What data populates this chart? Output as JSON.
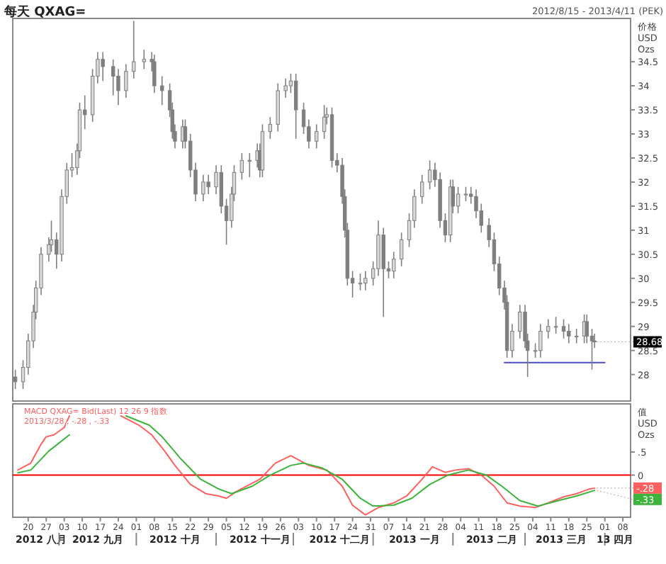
{
  "chart_data": [
    {
      "type": "candlestick",
      "title": "每天 QXAG=",
      "subtitle": "2012/8/15 - 2013/4/11 (PEK)",
      "ylabel": "价格\nUSD\nOzs",
      "color": "#7f7f7f",
      "tick_labels": "y",
      "xlim": [
        "2012-08-14",
        "2013-04-11"
      ],
      "ylim": [
        27.45,
        35.4
      ],
      "yticks": [
        28,
        28.5,
        29,
        29.5,
        30,
        30.5,
        31,
        31.5,
        32,
        32.5,
        33,
        33.5,
        34,
        34.5
      ],
      "x": [
        "2012-08-15",
        "2012-08-18",
        "2012-08-20",
        "2012-08-22",
        "2012-08-23",
        "2012-08-25",
        "2012-08-28",
        "2012-08-29",
        "2012-08-31",
        "2012-09-02",
        "2012-09-04",
        "2012-09-06",
        "2012-09-08",
        "2012-09-09",
        "2012-09-11",
        "2012-09-14",
        "2012-09-16",
        "2012-09-18",
        "2012-09-22",
        "2012-09-24",
        "2012-09-27",
        "2012-09-30",
        "2012-10-04",
        "2012-10-07",
        "2012-10-08",
        "2012-10-11",
        "2012-10-14",
        "2012-10-15",
        "2012-10-16",
        "2012-10-19",
        "2012-10-20",
        "2012-10-22",
        "2012-10-24",
        "2012-10-27",
        "2012-10-29",
        "2012-11-01",
        "2012-11-03",
        "2012-11-05",
        "2012-11-07",
        "2012-11-08",
        "2012-11-11",
        "2012-11-14",
        "2012-11-17",
        "2012-11-18",
        "2012-11-19",
        "2012-11-22",
        "2012-11-25",
        "2012-11-28",
        "2012-11-30",
        "2012-12-02",
        "2012-12-05",
        "2012-12-07",
        "2012-12-10",
        "2012-12-13",
        "2012-12-14",
        "2012-12-16",
        "2012-12-18",
        "2012-12-20",
        "2012-12-21",
        "2012-12-22",
        "2012-12-24",
        "2012-12-27",
        "2012-12-29",
        "2013-01-01",
        "2013-01-03",
        "2013-01-05",
        "2013-01-07",
        "2013-01-09",
        "2013-01-12",
        "2013-01-15",
        "2013-01-17",
        "2013-01-20",
        "2013-01-23",
        "2013-01-25",
        "2013-01-27",
        "2013-01-29",
        "2013-01-31",
        "2013-02-01",
        "2013-02-03",
        "2013-02-06",
        "2013-02-08",
        "2013-02-10",
        "2013-02-12",
        "2013-02-15",
        "2013-02-17",
        "2013-02-19",
        "2013-02-21",
        "2013-02-22",
        "2013-02-24",
        "2013-02-27",
        "2013-03-01",
        "2013-03-02",
        "2013-03-05",
        "2013-03-07",
        "2013-03-10",
        "2013-03-13",
        "2013-03-16",
        "2013-03-18",
        "2013-03-21",
        "2013-03-24",
        "2013-03-25",
        "2013-03-27",
        "2013-03-28"
      ],
      "ohlc": [
        [
          27.95,
          28.1,
          27.7,
          27.85
        ],
        [
          27.85,
          28.3,
          27.7,
          28.15
        ],
        [
          28.15,
          28.85,
          28.0,
          28.7
        ],
        [
          28.7,
          29.45,
          28.55,
          29.3
        ],
        [
          29.3,
          29.95,
          29.15,
          29.8
        ],
        [
          29.8,
          30.65,
          29.65,
          30.5
        ],
        [
          30.5,
          30.85,
          30.35,
          30.7
        ],
        [
          30.7,
          31.2,
          30.55,
          30.8
        ],
        [
          30.8,
          30.95,
          30.2,
          30.5
        ],
        [
          30.5,
          31.85,
          30.35,
          31.7
        ],
        [
          31.7,
          32.4,
          31.55,
          32.25
        ],
        [
          32.25,
          32.6,
          32.1,
          32.3
        ],
        [
          32.3,
          32.8,
          32.15,
          32.65
        ],
        [
          32.65,
          33.65,
          32.5,
          33.5
        ],
        [
          33.5,
          33.8,
          33.1,
          33.4
        ],
        [
          33.4,
          34.35,
          33.25,
          34.2
        ],
        [
          34.2,
          34.7,
          34.05,
          34.55
        ],
        [
          34.55,
          34.7,
          34.1,
          34.4
        ],
        [
          34.4,
          34.55,
          33.8,
          34.2
        ],
        [
          34.2,
          34.35,
          33.6,
          33.9
        ],
        [
          33.9,
          34.45,
          33.75,
          34.3
        ],
        [
          34.3,
          35.35,
          34.15,
          34.5
        ],
        [
          34.5,
          34.75,
          34.35,
          34.55
        ],
        [
          34.55,
          34.7,
          34.3,
          34.5
        ],
        [
          34.5,
          34.65,
          33.85,
          34.0
        ],
        [
          34.0,
          34.2,
          33.6,
          33.9
        ],
        [
          33.9,
          34.05,
          33.35,
          33.5
        ],
        [
          33.5,
          33.65,
          32.9,
          33.05
        ],
        [
          33.05,
          33.2,
          32.7,
          32.85
        ],
        [
          32.85,
          33.3,
          32.7,
          33.15
        ],
        [
          33.15,
          33.3,
          32.7,
          32.85
        ],
        [
          32.85,
          33.0,
          32.1,
          32.25
        ],
        [
          32.25,
          32.4,
          31.6,
          31.75
        ],
        [
          31.75,
          32.15,
          31.6,
          32.0
        ],
        [
          32.0,
          32.15,
          31.75,
          31.9
        ],
        [
          31.9,
          32.35,
          31.75,
          32.2
        ],
        [
          32.2,
          32.35,
          31.35,
          31.5
        ],
        [
          31.5,
          31.65,
          30.7,
          31.2
        ],
        [
          31.2,
          31.9,
          31.05,
          31.75
        ],
        [
          31.75,
          32.35,
          31.6,
          32.2
        ],
        [
          32.2,
          32.6,
          32.05,
          32.45
        ],
        [
          32.45,
          32.6,
          32.1,
          32.45
        ],
        [
          32.45,
          32.8,
          32.3,
          32.65
        ],
        [
          32.65,
          32.8,
          32.1,
          32.25
        ],
        [
          32.25,
          33.2,
          32.1,
          33.05
        ],
        [
          33.05,
          33.35,
          32.9,
          33.2
        ],
        [
          33.2,
          34.05,
          33.05,
          33.9
        ],
        [
          33.9,
          34.15,
          33.75,
          34.0
        ],
        [
          34.0,
          34.25,
          33.85,
          34.1
        ],
        [
          34.1,
          34.25,
          32.9,
          33.5
        ],
        [
          33.5,
          33.65,
          33.0,
          33.15
        ],
        [
          33.15,
          33.3,
          32.7,
          32.85
        ],
        [
          32.85,
          33.2,
          32.7,
          33.05
        ],
        [
          33.05,
          33.6,
          32.9,
          33.35
        ],
        [
          33.35,
          33.55,
          33.2,
          33.4
        ],
        [
          33.4,
          33.55,
          32.3,
          32.45
        ],
        [
          32.45,
          32.6,
          32.2,
          32.35
        ],
        [
          32.35,
          32.5,
          31.55,
          31.7
        ],
        [
          31.7,
          31.85,
          30.85,
          31.0
        ],
        [
          31.0,
          31.15,
          29.85,
          30.0
        ],
        [
          30.0,
          30.15,
          29.6,
          29.9
        ],
        [
          29.9,
          30.1,
          29.75,
          29.9
        ],
        [
          29.9,
          30.15,
          29.75,
          30.0
        ],
        [
          30.0,
          30.35,
          29.85,
          30.2
        ],
        [
          30.2,
          31.2,
          30.05,
          30.9
        ],
        [
          30.9,
          31.05,
          29.2,
          30.2
        ],
        [
          30.2,
          30.35,
          30.0,
          30.15
        ],
        [
          30.15,
          30.55,
          30.0,
          30.4
        ],
        [
          30.4,
          30.95,
          30.25,
          30.8
        ],
        [
          30.8,
          31.35,
          30.65,
          31.2
        ],
        [
          31.2,
          31.85,
          31.05,
          31.7
        ],
        [
          31.7,
          32.15,
          31.55,
          32.0
        ],
        [
          32.0,
          32.45,
          31.85,
          32.25
        ],
        [
          32.25,
          32.4,
          31.9,
          32.05
        ],
        [
          32.05,
          32.2,
          31.05,
          31.2
        ],
        [
          31.2,
          31.35,
          30.75,
          30.9
        ],
        [
          30.9,
          32.05,
          30.75,
          31.9
        ],
        [
          31.9,
          32.05,
          31.35,
          31.5
        ],
        [
          31.5,
          31.9,
          31.35,
          31.75
        ],
        [
          31.75,
          31.9,
          31.6,
          31.75
        ],
        [
          31.75,
          31.9,
          31.55,
          31.7
        ],
        [
          31.7,
          31.85,
          31.25,
          31.4
        ],
        [
          31.4,
          31.55,
          30.95,
          31.1
        ],
        [
          31.1,
          31.25,
          30.65,
          30.8
        ],
        [
          30.8,
          30.95,
          30.15,
          30.3
        ],
        [
          30.3,
          30.45,
          29.65,
          29.8
        ],
        [
          29.8,
          29.95,
          29.35,
          29.5
        ],
        [
          29.5,
          29.65,
          28.35,
          28.5
        ],
        [
          28.5,
          29.05,
          28.35,
          28.9
        ],
        [
          28.9,
          29.45,
          28.75,
          29.3
        ],
        [
          29.3,
          29.45,
          28.55,
          28.7
        ],
        [
          28.7,
          28.85,
          27.95,
          28.5
        ],
        [
          28.5,
          28.65,
          28.35,
          28.5
        ],
        [
          28.5,
          29.05,
          28.35,
          28.9
        ],
        [
          28.9,
          29.15,
          28.75,
          29.0
        ],
        [
          29.0,
          29.2,
          28.85,
          29.0
        ],
        [
          29.0,
          29.15,
          28.75,
          28.9
        ],
        [
          28.9,
          29.05,
          28.65,
          28.8
        ],
        [
          28.8,
          28.95,
          28.65,
          28.8
        ],
        [
          28.8,
          29.25,
          28.65,
          29.1
        ],
        [
          29.1,
          29.25,
          28.65,
          28.8
        ],
        [
          28.8,
          28.95,
          28.1,
          28.7
        ],
        [
          28.7,
          28.85,
          28.55,
          28.68
        ]
      ],
      "series": [
        {
          "type": "line",
          "color": "#4b4bc8",
          "x": [
            "2013-02-21",
            "2013-04-01"
          ],
          "values": [
            28.25,
            28.25
          ]
        }
      ],
      "annotations": [
        {
          "text": "28.68",
          "x": "2013-03-28",
          "y": 28.68
        }
      ]
    },
    {
      "type": "line",
      "ylabel": "值\nUSD\nOzs",
      "xlim": [
        "2012-08-14",
        "2013-04-11"
      ],
      "ylim": [
        -0.91,
        1.54
      ],
      "yticks": [
        {
          "value": 0.5,
          "label": ".5"
        },
        0
      ],
      "xticks": [
        {
          "value": "2012-08-20",
          "label": "20"
        },
        {
          "value": "2012-08-27",
          "label": "27"
        },
        {
          "value": "2012-09-03",
          "label": "03"
        },
        {
          "value": "2012-09-10",
          "label": "10"
        },
        {
          "value": "2012-09-17",
          "label": "17"
        },
        {
          "value": "2012-09-24",
          "label": "24"
        },
        {
          "value": "2012-10-01",
          "label": "01"
        },
        {
          "value": "2012-10-08",
          "label": "08"
        },
        {
          "value": "2012-10-15",
          "label": "15"
        },
        {
          "value": "2012-10-22",
          "label": "22"
        },
        {
          "value": "2012-10-29",
          "label": "29"
        },
        {
          "value": "2012-11-05",
          "label": "05"
        },
        {
          "value": "2012-11-12",
          "label": "12"
        },
        {
          "value": "2012-11-19",
          "label": "19"
        },
        {
          "value": "2012-11-26",
          "label": "26"
        },
        {
          "value": "2012-12-03",
          "label": "03"
        },
        {
          "value": "2012-12-10",
          "label": "10"
        },
        {
          "value": "2012-12-17",
          "label": "17"
        },
        {
          "value": "2012-12-24",
          "label": "24"
        },
        {
          "value": "2012-12-31",
          "label": "31"
        },
        {
          "value": "2013-01-07",
          "label": "07"
        },
        {
          "value": "2013-01-14",
          "label": "14"
        },
        {
          "value": "2013-01-21",
          "label": "21"
        },
        {
          "value": "2013-01-28",
          "label": "28"
        },
        {
          "value": "2013-02-04",
          "label": "04"
        },
        {
          "value": "2013-02-11",
          "label": "11"
        },
        {
          "value": "2013-02-18",
          "label": "18"
        },
        {
          "value": "2013-02-25",
          "label": "25"
        },
        {
          "value": "2013-03-04",
          "label": "04"
        },
        {
          "value": "2013-03-11",
          "label": "11"
        },
        {
          "value": "2013-03-18",
          "label": "18"
        },
        {
          "value": "2013-03-25",
          "label": "25"
        },
        {
          "value": "2013-04-01",
          "label": "01"
        },
        {
          "value": "2013-04-08",
          "label": "08"
        }
      ],
      "x2lim": [
        "2012-08-14",
        "2013-04-11"
      ],
      "x2ticks": [
        {
          "value": "2012-08-25",
          "label": "2012 八月"
        },
        {
          "value": "2012-09-01",
          "label": null
        },
        {
          "value": "2012-09-16",
          "label": "2012 九月"
        },
        {
          "value": "2012-10-01",
          "label": null
        },
        {
          "value": "2012-10-16",
          "label": "2012 十月"
        },
        {
          "value": "2012-11-01",
          "label": null
        },
        {
          "value": "2012-11-18",
          "label": "2012 十一月"
        },
        {
          "value": "2012-12-01",
          "label": null
        },
        {
          "value": "2012-12-19",
          "label": "2012 十二月"
        },
        {
          "value": "2013-01-01",
          "label": null
        },
        {
          "value": "2013-01-17",
          "label": "2013 一月"
        },
        {
          "value": "2013-02-01",
          "label": null
        },
        {
          "value": "2013-02-16",
          "label": "2013 二月"
        },
        {
          "value": "2013-03-01",
          "label": null
        },
        {
          "value": "2013-03-15",
          "label": "2013 三月"
        },
        {
          "value": "2013-04-01",
          "label": null
        },
        {
          "value": "2013-04-05",
          "label": "13 四月"
        }
      ],
      "series": [
        {
          "color": "#ff6060",
          "x": [
            "2012-08-16",
            "2012-08-21",
            "2012-08-25",
            "2012-08-27",
            "2012-08-30",
            "2012-09-03",
            "2012-09-05",
            "2012-09-15",
            "2012-09-25",
            "2012-10-02",
            "2012-10-07",
            "2012-10-12",
            "2012-10-16",
            "2012-10-22",
            "2012-10-28",
            "2012-11-02",
            "2012-11-05",
            "2012-11-09",
            "2012-11-18",
            "2012-11-24",
            "2012-11-30",
            "2012-12-07",
            "2012-12-14",
            "2012-12-20",
            "2012-12-24",
            "2012-12-29",
            "2013-01-03",
            "2013-01-09",
            "2013-01-14",
            "2013-01-20",
            "2013-01-24",
            "2013-01-29",
            "2013-02-02",
            "2013-02-07",
            "2013-02-12",
            "2013-02-17",
            "2013-02-22",
            "2013-02-27",
            "2013-03-05",
            "2013-03-10",
            "2013-03-16",
            "2013-03-21",
            "2013-03-26",
            "2013-03-28"
          ],
          "values": [
            0.11,
            0.26,
            0.67,
            0.83,
            0.87,
            1.03,
            1.28,
            null,
            1.28,
            1.08,
            0.87,
            0.52,
            0.21,
            -0.2,
            -0.4,
            -0.45,
            -0.5,
            -0.35,
            -0.09,
            0.26,
            0.42,
            0.21,
            0.11,
            -0.24,
            -0.65,
            -0.86,
            -0.7,
            -0.6,
            -0.45,
            -0.09,
            0.18,
            0.06,
            0.11,
            0.14,
            0,
            -0.24,
            -0.6,
            -0.67,
            -0.7,
            -0.6,
            -0.47,
            -0.4,
            -0.3,
            -0.28
          ]
        },
        {
          "color": "#3cb43c",
          "x": [
            "2012-08-16",
            "2012-08-21",
            "2012-08-28",
            "2012-09-05",
            "2012-09-15",
            "2012-09-27",
            "2012-10-06",
            "2012-10-11",
            "2012-10-18",
            "2012-10-26",
            "2012-11-02",
            "2012-11-07",
            "2012-11-15",
            "2012-11-22",
            "2012-11-30",
            "2012-12-05",
            "2012-12-12",
            "2012-12-20",
            "2012-12-27",
            "2013-01-01",
            "2013-01-09",
            "2013-01-16",
            "2013-01-23",
            "2013-01-30",
            "2013-02-07",
            "2013-02-14",
            "2013-02-20",
            "2013-02-27",
            "2013-03-06",
            "2013-03-14",
            "2013-03-21",
            "2013-03-28"
          ],
          "values": [
            0.05,
            0.11,
            0.52,
            0.87,
            null,
            1.28,
            1.08,
            0.83,
            0.37,
            -0.09,
            -0.3,
            -0.4,
            -0.24,
            0,
            0.21,
            0.26,
            0.16,
            -0.09,
            -0.5,
            -0.67,
            -0.65,
            -0.5,
            -0.2,
            0,
            0.11,
            0,
            -0.24,
            -0.55,
            -0.67,
            -0.55,
            -0.45,
            -0.33
          ]
        }
      ],
      "ref_lines": [
        {
          "axis": "y",
          "value": 0,
          "color": "#ff0000"
        }
      ],
      "annotations": [
        "MACD QXAG= Bid(Last)  12 26 9 指数",
        "2013/3/28 , -.28 , -.33",
        {
          "text": "-.28",
          "x": "2013-03-28",
          "y": -0.28
        },
        {
          "text": "-.33",
          "x": "2013-03-28",
          "y": -0.33
        }
      ]
    }
  ]
}
